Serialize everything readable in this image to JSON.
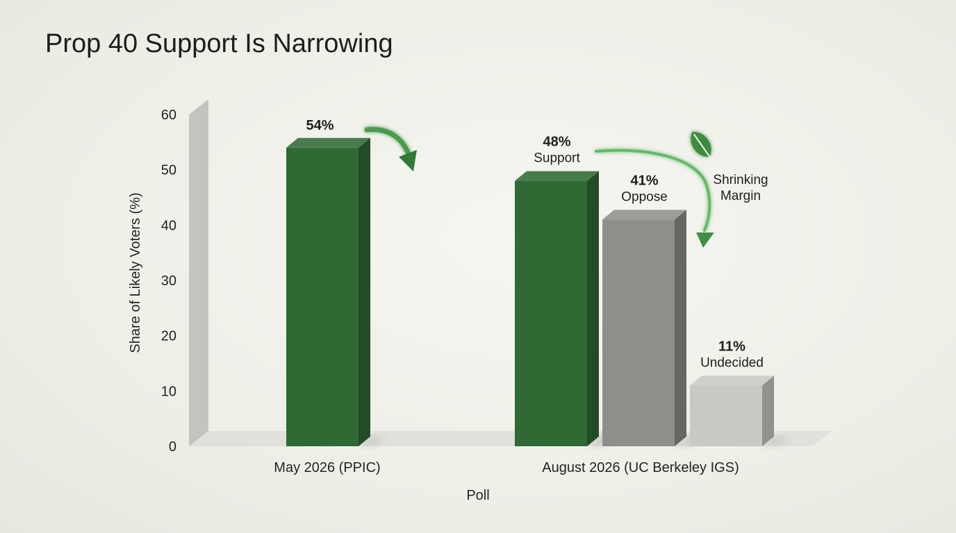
{
  "chart_data": {
    "type": "bar",
    "title": "Prop 40 Support Is Narrowing",
    "xlabel": "Poll",
    "ylabel": "Share of Likely Voters (%)",
    "ylim": [
      0,
      60
    ],
    "yticks": [
      0,
      10,
      20,
      30,
      40,
      50,
      60
    ],
    "grid": false,
    "groups": [
      {
        "label": "May 2026 (PPIC)",
        "bars": [
          {
            "series": "Support",
            "value": 54,
            "value_label": "54%",
            "name_label": "",
            "color": "#2f6a35"
          }
        ]
      },
      {
        "label": "August 2026 (UC Berkeley IGS)",
        "bars": [
          {
            "series": "Support",
            "value": 48,
            "value_label": "48%",
            "name_label": "Support",
            "color": "#2f6a35"
          },
          {
            "series": "Oppose",
            "value": 41,
            "value_label": "41%",
            "name_label": "Oppose",
            "color": "#8e8e8b"
          },
          {
            "series": "Undecided",
            "value": 11,
            "value_label": "11%",
            "name_label": "Undecided",
            "color": "#c9c9c4"
          }
        ]
      }
    ],
    "annotations": [
      {
        "text": [
          "Shrinking",
          "Margin"
        ],
        "icon": "leaf-icon"
      }
    ]
  },
  "colors": {
    "support": "#2f6a35",
    "oppose": "#8e8e8b",
    "undecided": "#c9c9c4",
    "accent_arrow": "#3f8f45",
    "text": "#1d1d1d"
  }
}
